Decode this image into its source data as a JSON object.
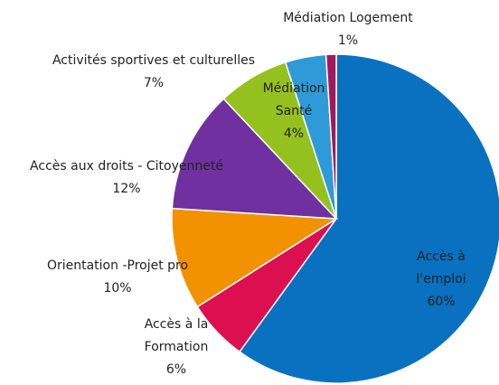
{
  "chart_data": {
    "type": "pie",
    "categories": [
      "Accès à l'emploi",
      "Accès à la Formation",
      "Orientation -Projet pro",
      "Accès aux droits - Citoyenneté",
      "Activités sportives et culturelles",
      "Médiation Santé",
      "Médiation Logement"
    ],
    "values": [
      60,
      6,
      10,
      12,
      7,
      4,
      1
    ],
    "value_labels": [
      "60%",
      "6%",
      "10%",
      "12%",
      "7%",
      "4%",
      "1%"
    ],
    "colors": [
      "#0a70c0",
      "#dc1050",
      "#f39200",
      "#7030a0",
      "#95c11f",
      "#2e9ad8",
      "#a0195e"
    ]
  }
}
